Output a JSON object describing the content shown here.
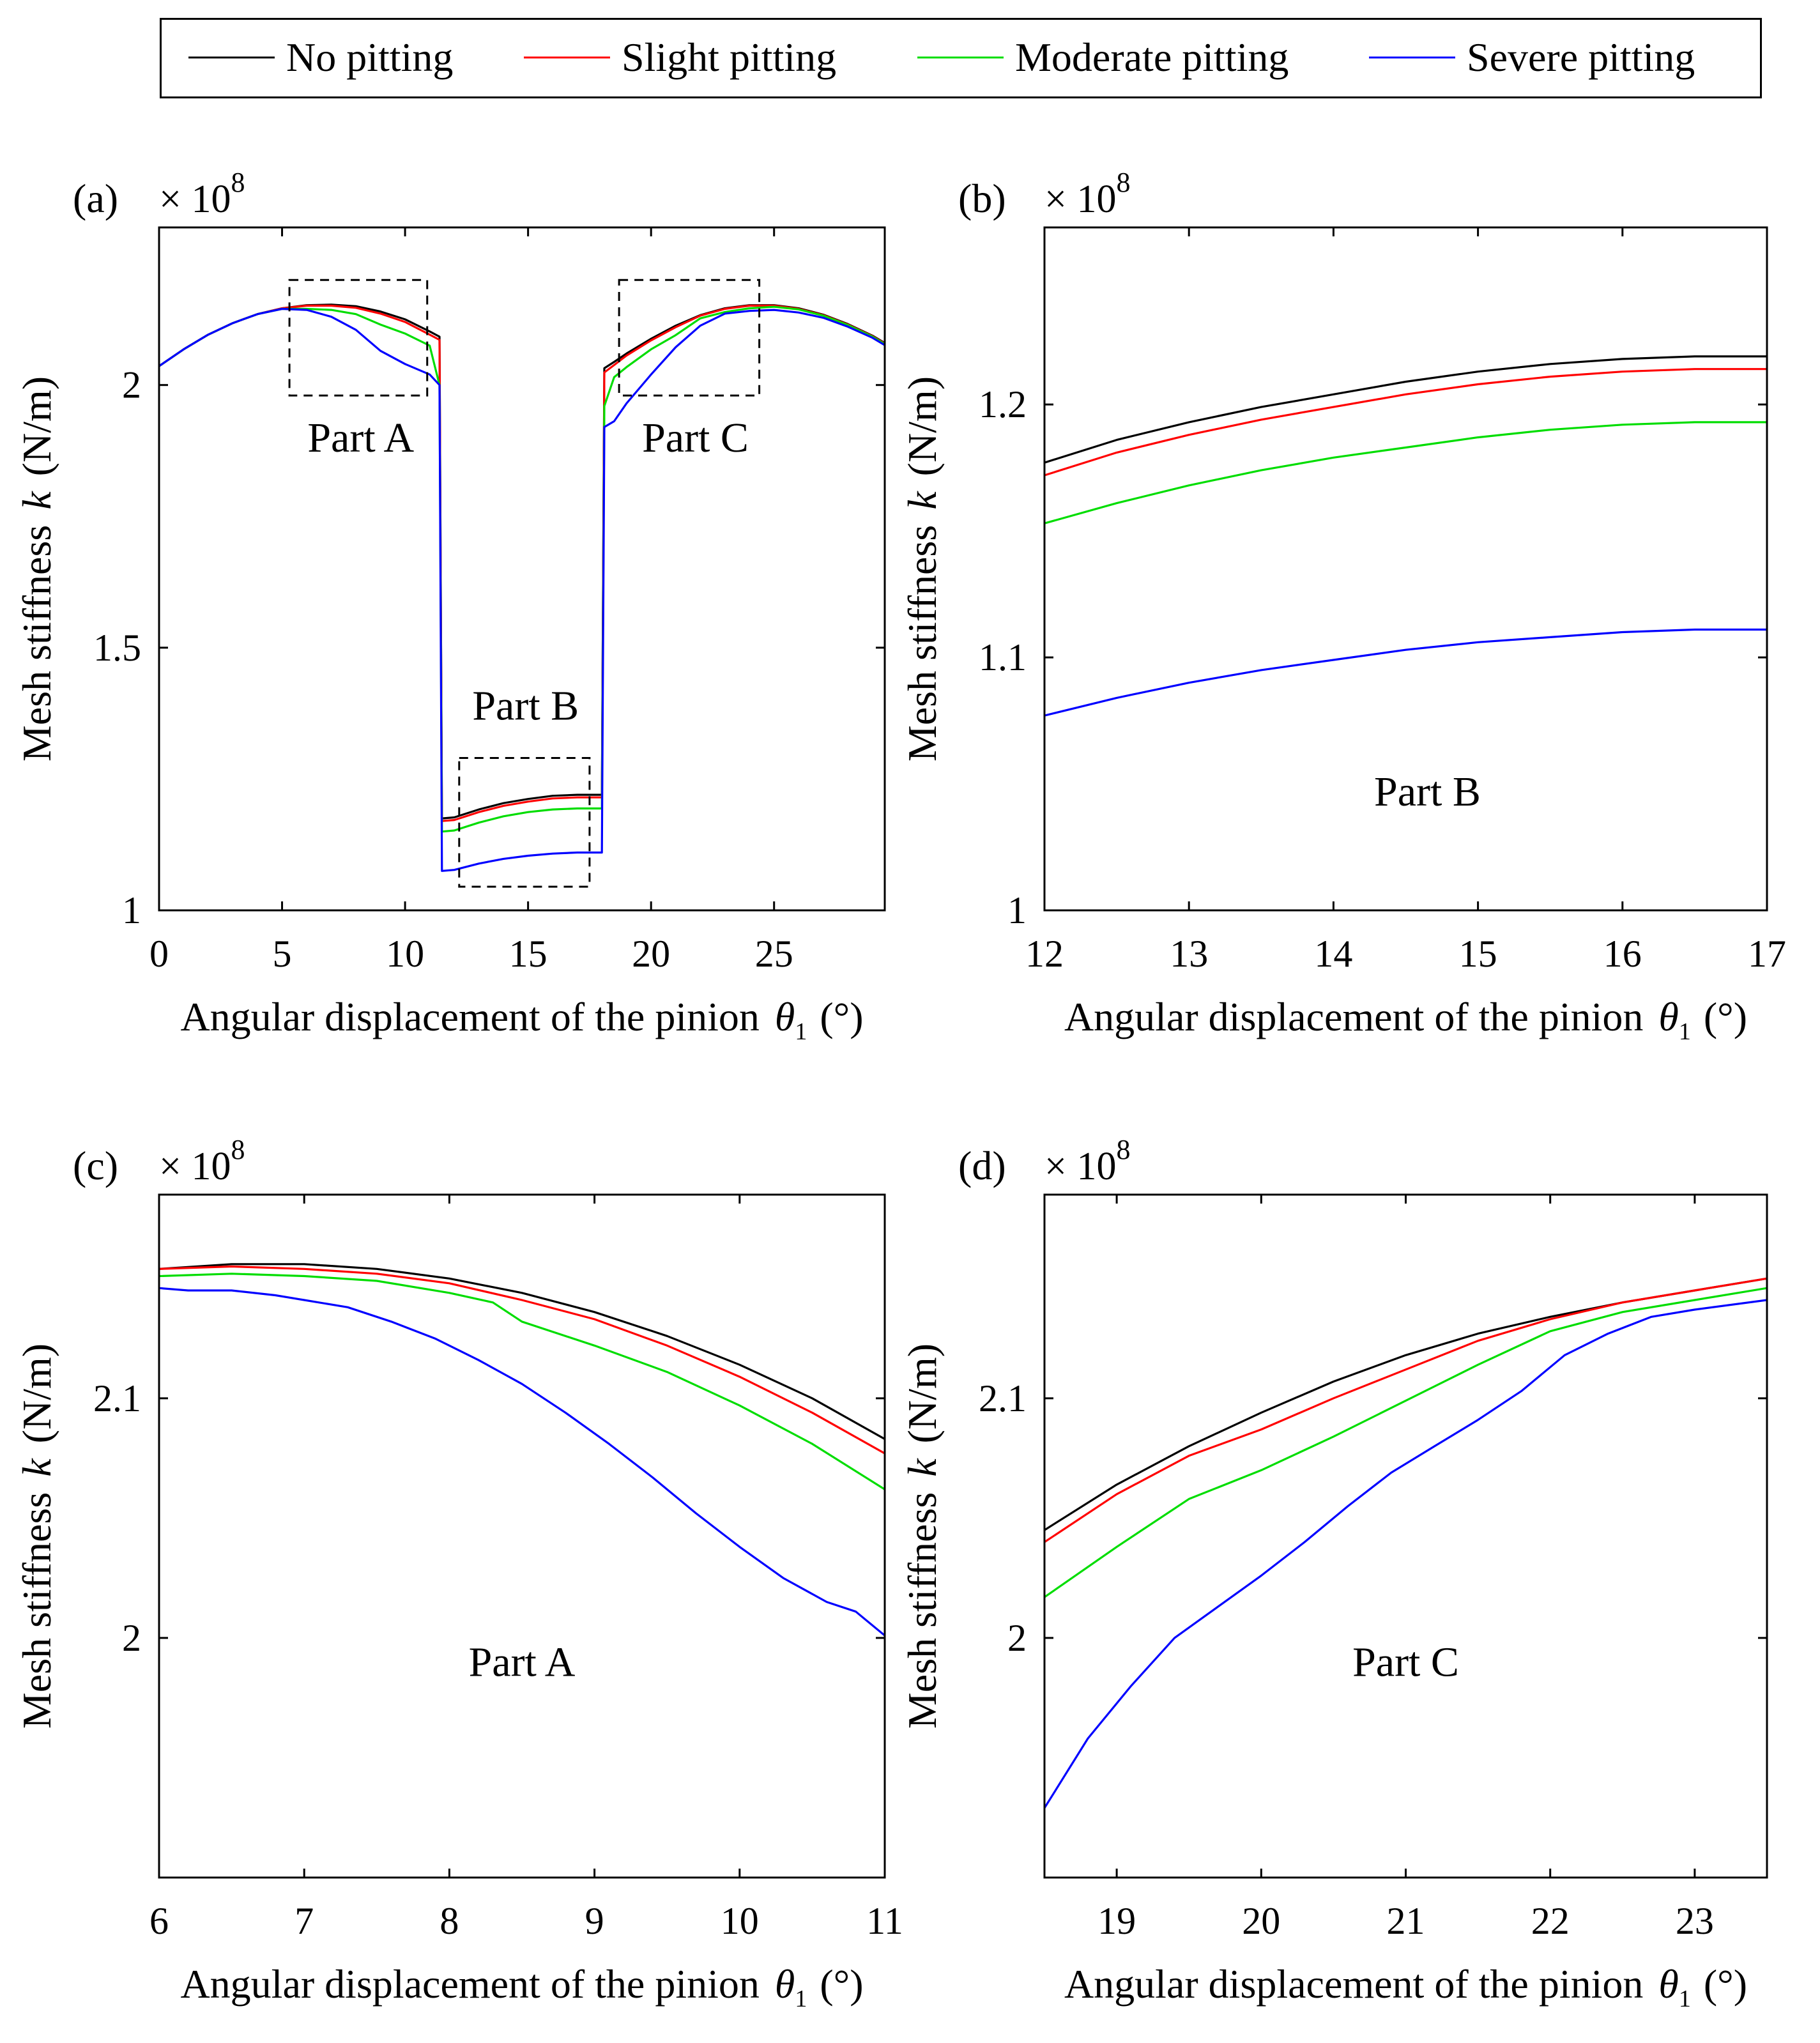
{
  "legend": {
    "items": [
      {
        "label": "No pitting",
        "color": "#000000"
      },
      {
        "label": "Slight pitting",
        "color": "#ff0000"
      },
      {
        "label": "Moderate pitting",
        "color": "#00dd00"
      },
      {
        "label": "Severe pitting",
        "color": "#0000ff"
      }
    ]
  },
  "chart_data": [
    {
      "type": "line",
      "panel_label": "(a)",
      "multiplier": "× 10",
      "multiplier_exp": "8",
      "xlabel": "Angular displacement of the pinion",
      "xsymbol": "θ",
      "xsub": "1",
      "xunit": "(°)",
      "ylabel": "Mesh stiffness",
      "ysymbol": "k",
      "yunit": "(N/m)",
      "xlim": [
        0,
        29.5
      ],
      "ylim": [
        1.0,
        2.3
      ],
      "xticks": [
        0,
        5,
        10,
        15,
        20,
        25
      ],
      "xtick_labels": [
        "0",
        "5",
        "10",
        "15",
        "20",
        "25"
      ],
      "yticks": [
        1.0,
        1.5,
        2.0
      ],
      "ytick_labels": [
        "1",
        "1.5",
        "2"
      ],
      "grid": false,
      "annotations": [
        {
          "text": "Part A",
          "x": 8.2,
          "y": 1.9
        },
        {
          "text": "Part B",
          "x": 14.9,
          "y": 1.39
        },
        {
          "text": "Part C",
          "x": 21.8,
          "y": 1.9
        }
      ],
      "zoom_boxes": [
        {
          "x": [
            5.3,
            10.9
          ],
          "y": [
            1.98,
            2.2
          ]
        },
        {
          "x": [
            12.2,
            17.5
          ],
          "y": [
            1.045,
            1.29
          ]
        },
        {
          "x": [
            18.7,
            24.4
          ],
          "y": [
            1.98,
            2.2
          ]
        }
      ],
      "series": [
        {
          "name": "No pitting",
          "color": "#000000",
          "x": [
            0,
            1,
            2,
            3,
            4,
            5,
            6,
            7,
            8,
            9,
            10,
            11,
            11.4,
            11.5,
            12,
            13,
            14,
            15,
            16,
            17,
            18,
            18.1,
            18.5,
            19,
            20,
            21,
            22,
            23,
            24,
            25,
            26,
            27,
            28,
            29,
            29.5
          ],
          "y": [
            2.036,
            2.068,
            2.096,
            2.118,
            2.135,
            2.146,
            2.152,
            2.153,
            2.15,
            2.14,
            2.125,
            2.102,
            2.092,
            1.175,
            1.177,
            1.192,
            1.204,
            1.212,
            1.218,
            1.22,
            1.22,
            2.032,
            2.044,
            2.06,
            2.088,
            2.113,
            2.133,
            2.146,
            2.152,
            2.152,
            2.146,
            2.134,
            2.116,
            2.094,
            2.08
          ]
        },
        {
          "name": "Slight pitting",
          "color": "#ff0000",
          "x": [
            0,
            1,
            2,
            3,
            4,
            5,
            6,
            7,
            8,
            9,
            10,
            11,
            11.4,
            11.5,
            12,
            13,
            14,
            15,
            16,
            17,
            18,
            18.1,
            18.5,
            19,
            20,
            21,
            22,
            23,
            24,
            25,
            26,
            27,
            28,
            29,
            29.5
          ],
          "y": [
            2.036,
            2.068,
            2.096,
            2.118,
            2.135,
            2.146,
            2.151,
            2.151,
            2.147,
            2.136,
            2.12,
            2.096,
            2.086,
            1.17,
            1.172,
            1.187,
            1.199,
            1.207,
            1.213,
            1.215,
            1.215,
            2.024,
            2.038,
            2.056,
            2.085,
            2.11,
            2.132,
            2.145,
            2.151,
            2.151,
            2.145,
            2.133,
            2.115,
            2.093,
            2.079
          ]
        },
        {
          "name": "Moderate pitting",
          "color": "#00dd00",
          "x": [
            0,
            1,
            2,
            3,
            4,
            5,
            6,
            7,
            8,
            9,
            10,
            11,
            11.4,
            11.5,
            12,
            13,
            14,
            15,
            16,
            17,
            18,
            18.1,
            18.5,
            19,
            20,
            21,
            22,
            23,
            24,
            25,
            26,
            27,
            28,
            29,
            29.5
          ],
          "y": [
            2.036,
            2.068,
            2.096,
            2.118,
            2.135,
            2.145,
            2.145,
            2.143,
            2.135,
            2.115,
            2.098,
            2.075,
            2.0,
            1.15,
            1.152,
            1.167,
            1.179,
            1.187,
            1.192,
            1.194,
            1.194,
            1.96,
            2.015,
            2.034,
            2.068,
            2.095,
            2.127,
            2.139,
            2.146,
            2.149,
            2.144,
            2.132,
            2.114,
            2.092,
            2.078
          ]
        },
        {
          "name": "Severe pitting",
          "color": "#0000ff",
          "x": [
            0,
            1,
            2,
            3,
            4,
            5,
            6,
            7,
            8,
            9,
            10,
            11,
            11.4,
            11.5,
            12,
            13,
            14,
            15,
            16,
            17,
            18,
            18.1,
            18.5,
            19,
            20,
            21,
            22,
            23,
            24,
            25,
            26,
            27,
            28,
            29,
            29.5
          ],
          "y": [
            2.036,
            2.068,
            2.096,
            2.118,
            2.135,
            2.145,
            2.143,
            2.13,
            2.105,
            2.065,
            2.04,
            2.02,
            2.0,
            1.075,
            1.077,
            1.089,
            1.098,
            1.104,
            1.108,
            1.11,
            1.11,
            1.92,
            1.931,
            1.965,
            2.02,
            2.072,
            2.113,
            2.136,
            2.141,
            2.143,
            2.138,
            2.128,
            2.111,
            2.09,
            2.076
          ]
        }
      ]
    },
    {
      "type": "line",
      "panel_label": "(b)",
      "multiplier": "× 10",
      "multiplier_exp": "8",
      "xlabel": "Angular displacement of the pinion",
      "xsymbol": "θ",
      "xsub": "1",
      "xunit": "(°)",
      "ylabel": "Mesh stiffness",
      "ysymbol": "k",
      "yunit": "(N/m)",
      "xlim": [
        12,
        17
      ],
      "ylim": [
        1.0,
        1.27
      ],
      "xticks": [
        12,
        13,
        14,
        15,
        16,
        17
      ],
      "xtick_labels": [
        "12",
        "13",
        "14",
        "15",
        "16",
        "17"
      ],
      "yticks": [
        1.0,
        1.1,
        1.2
      ],
      "ytick_labels": [
        "1",
        "1.1",
        "1.2"
      ],
      "grid": false,
      "annotations": [
        {
          "text": "Part B",
          "x": 14.65,
          "y": 1.047
        }
      ],
      "series": [
        {
          "name": "No pitting",
          "color": "#000000",
          "x": [
            12,
            12.5,
            13,
            13.5,
            14,
            14.5,
            15,
            15.5,
            16,
            16.5,
            17
          ],
          "y": [
            1.177,
            1.186,
            1.193,
            1.199,
            1.204,
            1.209,
            1.213,
            1.216,
            1.218,
            1.219,
            1.219
          ]
        },
        {
          "name": "Slight pitting",
          "color": "#ff0000",
          "x": [
            12,
            12.5,
            13,
            13.5,
            14,
            14.5,
            15,
            15.5,
            16,
            16.5,
            17
          ],
          "y": [
            1.172,
            1.181,
            1.188,
            1.194,
            1.199,
            1.204,
            1.208,
            1.211,
            1.213,
            1.214,
            1.214
          ]
        },
        {
          "name": "Moderate pitting",
          "color": "#00dd00",
          "x": [
            12,
            12.5,
            13,
            13.5,
            14,
            14.5,
            15,
            15.5,
            16,
            16.5,
            17
          ],
          "y": [
            1.153,
            1.161,
            1.168,
            1.174,
            1.179,
            1.183,
            1.187,
            1.19,
            1.192,
            1.193,
            1.193
          ]
        },
        {
          "name": "Severe pitting",
          "color": "#0000ff",
          "x": [
            12,
            12.5,
            13,
            13.5,
            14,
            14.5,
            15,
            15.5,
            16,
            16.5,
            17
          ],
          "y": [
            1.077,
            1.084,
            1.09,
            1.095,
            1.099,
            1.103,
            1.106,
            1.108,
            1.11,
            1.111,
            1.111
          ]
        }
      ]
    },
    {
      "type": "line",
      "panel_label": "(c)",
      "multiplier": "× 10",
      "multiplier_exp": "8",
      "xlabel": "Angular displacement of the pinion",
      "xsymbol": "θ",
      "xsub": "1",
      "xunit": "(°)",
      "ylabel": "Mesh stiffness",
      "ysymbol": "k",
      "yunit": "(N/m)",
      "xlim": [
        6,
        11
      ],
      "ylim": [
        1.9,
        2.185
      ],
      "xticks": [
        6,
        7,
        8,
        9,
        10,
        11
      ],
      "xtick_labels": [
        "6",
        "7",
        "8",
        "9",
        "10",
        "11"
      ],
      "yticks": [
        2.0,
        2.1
      ],
      "ytick_labels": [
        "2",
        "2.1"
      ],
      "grid": false,
      "annotations": [
        {
          "text": "Part A",
          "x": 8.5,
          "y": 1.99
        }
      ],
      "series": [
        {
          "name": "No pitting",
          "color": "#000000",
          "x": [
            6,
            6.5,
            7,
            7.5,
            8,
            8.5,
            9,
            9.5,
            10,
            10.5,
            11
          ],
          "y": [
            2.154,
            2.156,
            2.156,
            2.154,
            2.15,
            2.144,
            2.136,
            2.126,
            2.114,
            2.1,
            2.083
          ]
        },
        {
          "name": "Slight pitting",
          "color": "#ff0000",
          "x": [
            6,
            6.5,
            7,
            7.5,
            8,
            8.5,
            9,
            9.5,
            10,
            10.5,
            11
          ],
          "y": [
            2.154,
            2.155,
            2.154,
            2.152,
            2.148,
            2.141,
            2.133,
            2.122,
            2.109,
            2.094,
            2.077
          ]
        },
        {
          "name": "Moderate pitting",
          "color": "#00dd00",
          "x": [
            6,
            6.5,
            7,
            7.5,
            8,
            8.3,
            8.5,
            9,
            9.5,
            10,
            10.5,
            11
          ],
          "y": [
            2.151,
            2.152,
            2.151,
            2.149,
            2.144,
            2.14,
            2.132,
            2.122,
            2.111,
            2.097,
            2.081,
            2.062
          ]
        },
        {
          "name": "Severe pitting",
          "color": "#0000ff",
          "x": [
            6,
            6.2,
            6.5,
            6.8,
            7,
            7.3,
            7.6,
            7.9,
            8.2,
            8.5,
            8.8,
            9.1,
            9.4,
            9.7,
            10,
            10.3,
            10.6,
            10.8,
            11
          ],
          "y": [
            2.146,
            2.145,
            2.145,
            2.143,
            2.141,
            2.138,
            2.132,
            2.125,
            2.116,
            2.106,
            2.094,
            2.081,
            2.067,
            2.052,
            2.038,
            2.025,
            2.015,
            2.011,
            2.001
          ]
        }
      ]
    },
    {
      "type": "line",
      "panel_label": "(d)",
      "multiplier": "× 10",
      "multiplier_exp": "8",
      "xlabel": "Angular displacement of the pinion",
      "xsymbol": "θ",
      "xsub": "1",
      "xunit": "(°)",
      "ylabel": "Mesh stiffness",
      "ysymbol": "k",
      "yunit": "(N/m)",
      "xlim": [
        18.5,
        23.5
      ],
      "ylim": [
        1.9,
        2.185
      ],
      "xticks": [
        19,
        20,
        21,
        22,
        23
      ],
      "xtick_labels": [
        "19",
        "20",
        "21",
        "22",
        "23"
      ],
      "yticks": [
        2.0,
        2.1
      ],
      "ytick_labels": [
        "2",
        "2.1"
      ],
      "grid": false,
      "annotations": [
        {
          "text": "Part C",
          "x": 21.0,
          "y": 1.99
        }
      ],
      "series": [
        {
          "name": "No pitting",
          "color": "#000000",
          "x": [
            18.5,
            19,
            19.5,
            20,
            20.5,
            21,
            21.5,
            22,
            22.5,
            23,
            23.5
          ],
          "y": [
            2.045,
            2.064,
            2.08,
            2.094,
            2.107,
            2.118,
            2.127,
            2.134,
            2.14,
            2.145,
            2.15
          ]
        },
        {
          "name": "Slight pitting",
          "color": "#ff0000",
          "x": [
            18.5,
            19,
            19.5,
            20,
            20.5,
            21,
            21.5,
            22,
            22.5,
            23,
            23.5
          ],
          "y": [
            2.04,
            2.06,
            2.076,
            2.087,
            2.1,
            2.112,
            2.124,
            2.133,
            2.14,
            2.145,
            2.15
          ]
        },
        {
          "name": "Moderate pitting",
          "color": "#00dd00",
          "x": [
            18.5,
            19,
            19.5,
            20,
            20.5,
            21,
            21.5,
            22,
            22.5,
            23,
            23.5
          ],
          "y": [
            2.017,
            2.038,
            2.058,
            2.07,
            2.084,
            2.099,
            2.114,
            2.128,
            2.136,
            2.141,
            2.146
          ]
        },
        {
          "name": "Severe pitting",
          "color": "#0000ff",
          "x": [
            18.5,
            18.8,
            19.1,
            19.4,
            19.7,
            20,
            20.3,
            20.6,
            20.9,
            21.2,
            21.5,
            21.8,
            22.1,
            22.4,
            22.7,
            23,
            23.5
          ],
          "y": [
            1.929,
            1.958,
            1.98,
            2.0,
            2.013,
            2.026,
            2.04,
            2.055,
            2.069,
            2.08,
            2.091,
            2.103,
            2.118,
            2.127,
            2.134,
            2.137,
            2.141
          ]
        }
      ]
    }
  ]
}
